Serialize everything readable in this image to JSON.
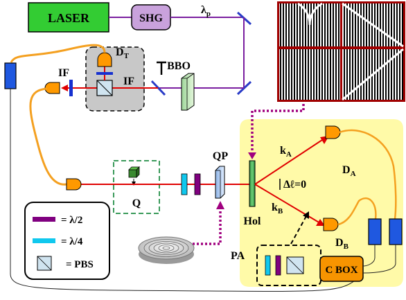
{
  "components": {
    "laser": "LASER",
    "shg": "SHG",
    "pump": "λ",
    "pump_sub": "p",
    "bbo": "BBO",
    "if_left": "IF",
    "if_box": "IF",
    "detector_t": "D",
    "detector_t_sub": "T",
    "q_plate": "QP",
    "q": "Q",
    "hologram": "Hol",
    "k_a": "k",
    "k_a_sub": "A",
    "k_b": "k",
    "k_b_sub": "B",
    "delta_l": "Δℓ=0",
    "detector_a": "D",
    "detector_a_sub": "A",
    "detector_b": "D",
    "detector_b_sub": "B",
    "pa": "PA",
    "cbox": "C BOX"
  },
  "legend": {
    "half_wave": "= λ/2",
    "quarter_wave": "= λ/4",
    "pbs": "= PBS"
  },
  "colors": {
    "laser_fill": "#33cc33",
    "shg_fill": "#c9a2dc",
    "beam": "#e00000",
    "fiber": "#f4a020",
    "yellow_area": "#fffaa8",
    "detector": "#ff9900",
    "purple": "#800080",
    "cyan": "#10c8ee",
    "blue_box": "#1f58e0",
    "dotted_link": "#a0007f"
  }
}
